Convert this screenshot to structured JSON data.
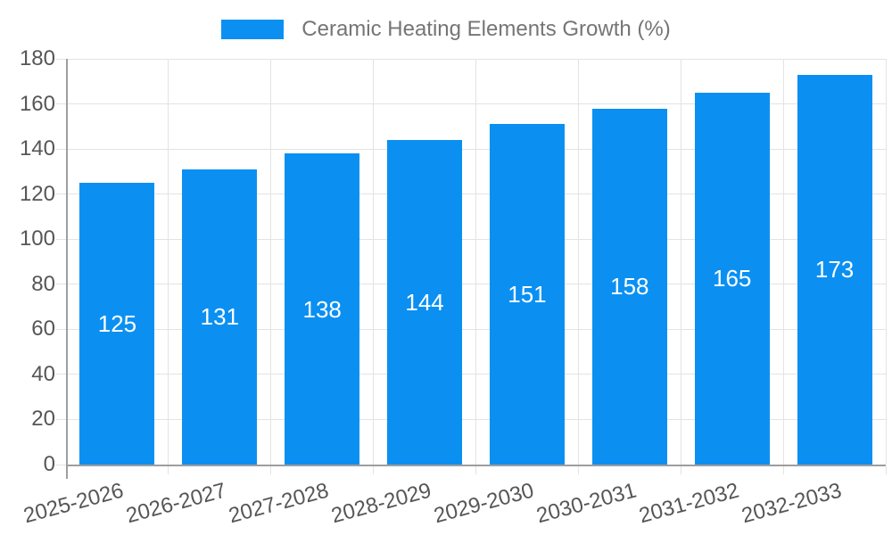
{
  "chart_data": {
    "type": "bar",
    "title": "",
    "xlabel": "",
    "ylabel": "",
    "legend": "Ceramic Heating Elements Growth (%)",
    "legend_position": "top-center",
    "categories": [
      "2025-2026",
      "2026-2027",
      "2027-2028",
      "2028-2029",
      "2029-2030",
      "2030-2031",
      "2031-2032",
      "2032-2033"
    ],
    "values": [
      125,
      131,
      138,
      144,
      151,
      158,
      165,
      173
    ],
    "ylim": [
      0,
      180
    ],
    "yticks": [
      0,
      20,
      40,
      60,
      80,
      100,
      120,
      140,
      160,
      180
    ],
    "grid": "on",
    "x_label_rotation_deg": -15,
    "colors": {
      "bar": "#0b90f2",
      "value_label": "#ffffff",
      "axis_line": "#9e9e9e",
      "gridline": "#e3e3e3",
      "axis_text": "#565656",
      "legend_text": "#757575",
      "background": "#ffffff"
    }
  }
}
